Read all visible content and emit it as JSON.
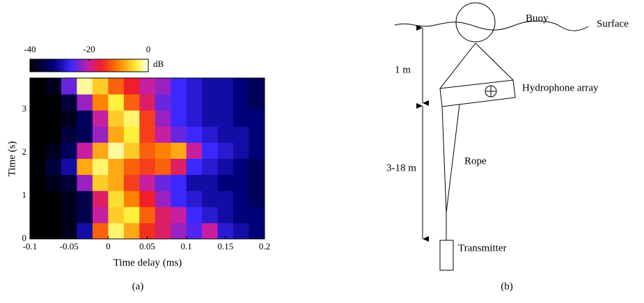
{
  "chart_data": {
    "type": "heatmap",
    "xlabel": "Time delay (ms)",
    "ylabel": "Time (s)",
    "caption": "(a)",
    "xlim": [
      -0.1,
      0.2
    ],
    "ylim": [
      0,
      3.73
    ],
    "xticks": [
      -0.1,
      -0.05,
      0,
      0.05,
      0.1,
      0.15,
      0.2
    ],
    "yticks": [
      0,
      1,
      2,
      3
    ],
    "colorbar": {
      "label": "dB",
      "lim": [
        -40,
        0
      ],
      "ticks": [
        -40,
        -20,
        0
      ]
    },
    "x_edges": [
      -0.1,
      -0.08,
      -0.06,
      -0.04,
      -0.02,
      0,
      0.02,
      0.04,
      0.06,
      0.08,
      0.1,
      0.12,
      0.14,
      0.16,
      0.18,
      0.2
    ],
    "y_edges": [
      0,
      0.373,
      0.746,
      1.119,
      1.492,
      1.865,
      2.238,
      2.611,
      2.984,
      3.357,
      3.73
    ],
    "values": [
      [
        -40,
        -40,
        -38,
        -30,
        -12,
        -3,
        -8,
        -15,
        -18,
        -22,
        -25,
        -20,
        -28,
        -30,
        -32
      ],
      [
        -40,
        -40,
        -38,
        -35,
        -20,
        -6,
        -4,
        -12,
        -18,
        -20,
        -26,
        -28,
        -30,
        -32,
        -32
      ],
      [
        -40,
        -40,
        -38,
        -35,
        -18,
        -5,
        -10,
        -16,
        -22,
        -26,
        -28,
        -30,
        -30,
        -32,
        -34
      ],
      [
        -40,
        -38,
        -36,
        -22,
        -6,
        -8,
        -14,
        -20,
        -24,
        -26,
        -30,
        -30,
        -32,
        -32,
        -34
      ],
      [
        -40,
        -36,
        -30,
        -8,
        -3,
        -8,
        -12,
        -14,
        -12,
        -18,
        -26,
        -28,
        -30,
        -32,
        -34
      ],
      [
        -40,
        -38,
        -34,
        -20,
        -8,
        -2,
        -6,
        -12,
        -10,
        -8,
        -20,
        -26,
        -28,
        -30,
        -32
      ],
      [
        -40,
        -40,
        -36,
        -34,
        -22,
        -8,
        -4,
        -14,
        -20,
        -24,
        -26,
        -28,
        -30,
        -30,
        -32
      ],
      [
        -40,
        -40,
        -38,
        -34,
        -20,
        -6,
        -3,
        -14,
        -22,
        -26,
        -28,
        -30,
        -30,
        -32,
        -32
      ],
      [
        -40,
        -40,
        -36,
        -22,
        -10,
        -4,
        -12,
        -18,
        -24,
        -26,
        -28,
        -30,
        -30,
        -32,
        -34
      ],
      [
        -40,
        -38,
        -24,
        -2,
        -6,
        -12,
        -16,
        -20,
        -22,
        -26,
        -28,
        -30,
        -30,
        -32,
        -34
      ]
    ]
  },
  "diagram": {
    "caption": "(b)",
    "buoy": "Buoy",
    "surface": "Surface",
    "upper_distance": "1 m",
    "lower_distance": "3-18 m",
    "array": "Hydrophone array",
    "rope": "Rope",
    "transmitter": "Transmitter"
  }
}
